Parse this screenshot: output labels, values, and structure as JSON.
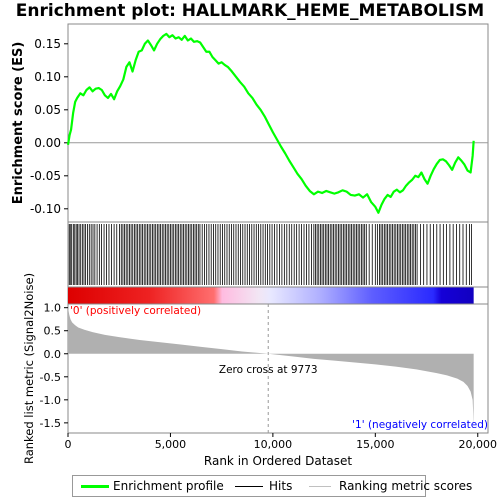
{
  "title": "Enrichment plot: HALLMARK_HEME_METABOLISM",
  "legend": {
    "items": [
      {
        "label": "Enrichment profile",
        "color": "#00ff00"
      },
      {
        "label": "Hits",
        "color": "#000000"
      },
      {
        "label": "Ranking metric scores",
        "color": "#c0c0c0"
      }
    ]
  },
  "annotations": {
    "pos_label": "'0' (positively correlated)",
    "neg_label": "'1' (negatively correlated)",
    "zero_cross": "Zero cross at 9773"
  },
  "colors": {
    "pos": "#ff0000",
    "neg": "#0000ff",
    "es": "#00ff00",
    "metric": "#b0b0b0"
  },
  "chart_data": [
    {
      "type": "line",
      "name": "enrichment-profile",
      "ylabel": "Enrichment score (ES)",
      "xlim": [
        0,
        20500
      ],
      "ylim": [
        -0.12,
        0.18
      ],
      "yticks": [
        0.15,
        0.1,
        0.05,
        0.0,
        -0.05,
        -0.1
      ],
      "ytick_labels": [
        "0.15",
        "0.10",
        "0.05",
        "0.00",
        "-0.05",
        "-0.10"
      ],
      "x": [
        0,
        80,
        150,
        250,
        350,
        450,
        600,
        750,
        900,
        1050,
        1200,
        1350,
        1500,
        1650,
        1800,
        1950,
        2100,
        2250,
        2400,
        2550,
        2700,
        2850,
        3000,
        3150,
        3300,
        3450,
        3600,
        3750,
        3900,
        4050,
        4200,
        4350,
        4500,
        4650,
        4800,
        4950,
        5100,
        5250,
        5400,
        5550,
        5700,
        5850,
        6000,
        6150,
        6300,
        6450,
        6600,
        6750,
        6900,
        7050,
        7200,
        7350,
        7500,
        7650,
        7800,
        8000,
        8200,
        8400,
        8600,
        8800,
        9000,
        9200,
        9400,
        9600,
        9800,
        10000,
        10200,
        10400,
        10600,
        10800,
        11000,
        11200,
        11400,
        11600,
        11800,
        12000,
        12200,
        12400,
        12600,
        12800,
        13000,
        13200,
        13400,
        13600,
        13800,
        14000,
        14200,
        14400,
        14600,
        14800,
        15000,
        15150,
        15300,
        15450,
        15600,
        15750,
        15900,
        16050,
        16200,
        16350,
        16500,
        16650,
        16800,
        16950,
        17100,
        17250,
        17400,
        17550,
        17700,
        17850,
        18000,
        18150,
        18300,
        18450,
        18600,
        18750,
        18900,
        19050,
        19200,
        19350,
        19500,
        19650,
        19750,
        19800
      ],
      "y": [
        -0.003,
        0.012,
        0.02,
        0.045,
        0.062,
        0.068,
        0.075,
        0.072,
        0.08,
        0.084,
        0.078,
        0.082,
        0.083,
        0.08,
        0.072,
        0.068,
        0.074,
        0.066,
        0.078,
        0.086,
        0.096,
        0.115,
        0.122,
        0.108,
        0.125,
        0.138,
        0.14,
        0.15,
        0.155,
        0.148,
        0.14,
        0.15,
        0.157,
        0.162,
        0.165,
        0.16,
        0.163,
        0.158,
        0.16,
        0.156,
        0.162,
        0.155,
        0.158,
        0.153,
        0.154,
        0.152,
        0.145,
        0.138,
        0.138,
        0.13,
        0.125,
        0.12,
        0.122,
        0.118,
        0.115,
        0.108,
        0.1,
        0.092,
        0.085,
        0.075,
        0.068,
        0.058,
        0.05,
        0.04,
        0.028,
        0.016,
        0.005,
        -0.006,
        -0.016,
        -0.027,
        -0.037,
        -0.047,
        -0.055,
        -0.065,
        -0.073,
        -0.078,
        -0.074,
        -0.076,
        -0.073,
        -0.075,
        -0.077,
        -0.075,
        -0.072,
        -0.074,
        -0.079,
        -0.08,
        -0.078,
        -0.083,
        -0.078,
        -0.09,
        -0.097,
        -0.106,
        -0.094,
        -0.085,
        -0.079,
        -0.082,
        -0.074,
        -0.071,
        -0.075,
        -0.072,
        -0.065,
        -0.06,
        -0.056,
        -0.05,
        -0.052,
        -0.045,
        -0.055,
        -0.062,
        -0.05,
        -0.04,
        -0.032,
        -0.026,
        -0.025,
        -0.028,
        -0.034,
        -0.041,
        -0.03,
        -0.022,
        -0.027,
        -0.033,
        -0.042,
        -0.045,
        -0.02,
        0.003
      ]
    },
    {
      "type": "scatter",
      "name": "hits",
      "xlim": [
        0,
        20500
      ],
      "hit_positions": [
        60,
        110,
        180,
        260,
        330,
        400,
        470,
        540,
        620,
        700,
        780,
        860,
        950,
        1040,
        1130,
        1220,
        1310,
        1420,
        1530,
        1640,
        1760,
        1880,
        2000,
        2120,
        2250,
        2380,
        2510,
        2600,
        2680,
        2760,
        2840,
        2920,
        3000,
        3080,
        3160,
        3240,
        3320,
        3400,
        3480,
        3560,
        3640,
        3720,
        3800,
        3880,
        3960,
        4040,
        4120,
        4200,
        4280,
        4360,
        4440,
        4520,
        4600,
        4680,
        4760,
        4840,
        4920,
        5000,
        5080,
        5160,
        5240,
        5320,
        5400,
        5480,
        5560,
        5640,
        5720,
        5800,
        5880,
        5960,
        6040,
        6120,
        6200,
        6280,
        6360,
        6440,
        6550,
        6660,
        6770,
        6880,
        6990,
        7100,
        7210,
        7320,
        7430,
        7540,
        7650,
        7760,
        7870,
        7980,
        8090,
        8200,
        8310,
        8420,
        8530,
        8640,
        8750,
        8860,
        8970,
        9080,
        9190,
        9300,
        9410,
        9520,
        9630,
        9740,
        9850,
        9960,
        10080,
        10200,
        10320,
        10440,
        10560,
        10680,
        10800,
        10920,
        11040,
        11160,
        11280,
        11400,
        11520,
        11640,
        11760,
        11880,
        12000,
        12080,
        12160,
        12240,
        12320,
        12400,
        12480,
        12560,
        12640,
        12720,
        12800,
        12880,
        12960,
        13040,
        13120,
        13200,
        13280,
        13360,
        13440,
        13520,
        13600,
        13680,
        13760,
        13840,
        13920,
        14000,
        14080,
        14160,
        14240,
        14320,
        14400,
        14480,
        14560,
        14700,
        14850,
        15000,
        15100,
        15200,
        15280,
        15360,
        15440,
        15520,
        15600,
        15680,
        15760,
        15840,
        15920,
        16000,
        16080,
        16160,
        16240,
        16320,
        16400,
        16480,
        16560,
        16640,
        16720,
        16800,
        16880,
        16960,
        17040,
        17200,
        17360,
        17520,
        17680,
        17840,
        18000,
        18160,
        18320,
        18480,
        18640,
        18800,
        18960,
        19120,
        19280,
        19440,
        19600,
        19700
      ]
    },
    {
      "type": "area",
      "name": "ranked-list-metric",
      "xlabel": "Rank in Ordered Dataset",
      "ylabel": "Ranked list metric (Signal2Noise)",
      "xlim": [
        0,
        20500
      ],
      "ylim": [
        -1.72,
        1.08
      ],
      "yticks": [
        1.0,
        0.5,
        0.0,
        -0.5,
        -1.0,
        -1.5
      ],
      "ytick_labels": [
        "1.0",
        "0.5",
        "0.0",
        "-0.5",
        "-1.0",
        "-1.5"
      ],
      "xticks": [
        0,
        5000,
        10000,
        15000,
        20000
      ],
      "xtick_labels": [
        "0",
        "5,000",
        "10,000",
        "15,000",
        "20,000"
      ],
      "zero_cross": 9773,
      "x": [
        0,
        20,
        60,
        120,
        200,
        350,
        500,
        800,
        1200,
        1800,
        2500,
        3500,
        4500,
        5500,
        6500,
        7500,
        8500,
        9773,
        11000,
        12000,
        13000,
        14000,
        15000,
        16000,
        17000,
        17500,
        18000,
        18500,
        19000,
        19300,
        19500,
        19650,
        19750,
        19780,
        19800
      ],
      "y": [
        1.05,
        0.95,
        0.85,
        0.75,
        0.68,
        0.62,
        0.57,
        0.52,
        0.47,
        0.41,
        0.36,
        0.3,
        0.25,
        0.2,
        0.15,
        0.1,
        0.05,
        0.0,
        -0.06,
        -0.11,
        -0.15,
        -0.19,
        -0.23,
        -0.28,
        -0.34,
        -0.38,
        -0.42,
        -0.47,
        -0.54,
        -0.61,
        -0.7,
        -0.82,
        -1.0,
        -1.3,
        -1.62
      ]
    }
  ]
}
